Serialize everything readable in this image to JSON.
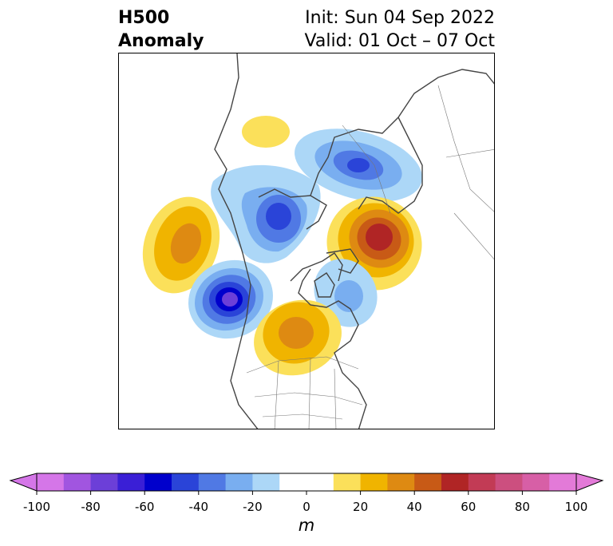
{
  "header": {
    "title_line1": "H500",
    "title_line2": "Anomaly",
    "init": "Init: Sun 04 Sep 2022",
    "valid": "Valid: 01 Oct – 07 Oct"
  },
  "colorbar": {
    "units": "m",
    "tick_labels": [
      "-100",
      "-80",
      "-60",
      "-40",
      "-20",
      "0",
      "20",
      "40",
      "60",
      "80",
      "100"
    ],
    "colors": [
      "#d576e8",
      "#a155e0",
      "#6c3fd8",
      "#3a1fd6",
      "#0000cc",
      "#2a44d8",
      "#5079e4",
      "#79aef0",
      "#acd7f7",
      "#ffffff",
      "#ffffff",
      "#fbe05a",
      "#f0b400",
      "#de8a12",
      "#c85a16",
      "#b02525",
      "#c23b55",
      "#cc4f7f",
      "#d75fa6",
      "#e37ad8"
    ],
    "extend_low": "#d576e8",
    "extend_high": "#e37ad8"
  },
  "map": {
    "projection": "polar stereographic (North America / Arctic)",
    "anomaly_centers": [
      {
        "region": "North Pacific (off Pacific NW)",
        "sign": "positive",
        "peak": 40
      },
      {
        "region": "Pacific Northwest coast",
        "sign": "negative",
        "peak": -70
      },
      {
        "region": "Central Canada / Great Plains north",
        "sign": "positive",
        "peak": 40
      },
      {
        "region": "Alaska / Bering Sea",
        "sign": "negative",
        "peak": -50
      },
      {
        "region": "East Siberia",
        "sign": "negative",
        "peak": -50
      },
      {
        "region": "Central Siberia north",
        "sign": "positive",
        "peak": 20
      },
      {
        "region": "Greenland / North Atlantic",
        "sign": "positive",
        "peak": 60
      },
      {
        "region": "Eastern Canada / Labrador",
        "sign": "negative",
        "peak": -30
      }
    ]
  }
}
